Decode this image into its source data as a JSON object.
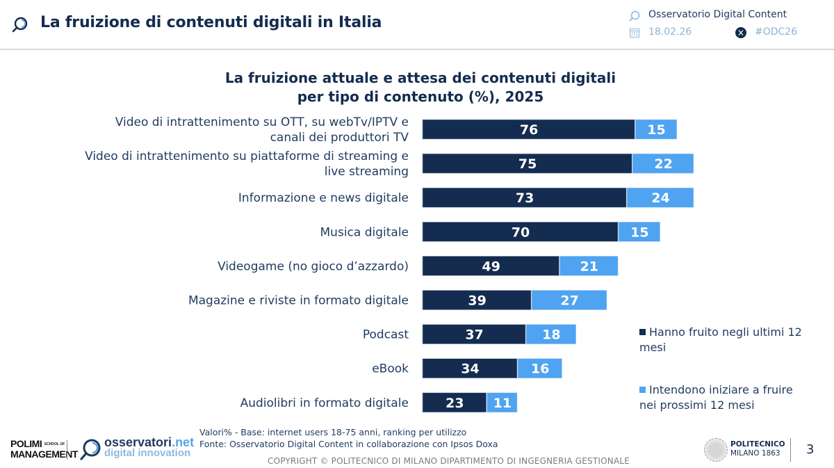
{
  "header": {
    "title": "La fruizione di contenuti digitali in Italia",
    "observatory": "Osservatorio Digital Content",
    "date": "18.02.26",
    "hashtag": "#ODC26",
    "icons": {
      "logo": "magnifier-logo-icon",
      "observatory": "magnifier-logo-icon",
      "date": "calendar-icon",
      "social": "x-social-icon"
    }
  },
  "colors": {
    "primary_dark": "#142c4f",
    "accent_light": "#4fa3f0"
  },
  "chart_data": {
    "type": "bar",
    "orientation": "horizontal",
    "stacked": true,
    "title": "La fruizione attuale e attesa dei contenuti digitali per tipo di contenuto (%), 2025",
    "title_lines": [
      "La fruizione attuale e attesa dei contenuti digitali",
      "per tipo di contenuto (%), 2025"
    ],
    "xlabel": "",
    "ylabel": "",
    "xlim": [
      0,
      100
    ],
    "grid": false,
    "legend_position": "bottom-right",
    "categories": [
      [
        "Video di intrattenimento su OTT, su webTv/IPTV e",
        "canali dei produttori TV"
      ],
      [
        "Video di intrattenimento su piattaforme di streaming e",
        "live streaming"
      ],
      [
        "Informazione e news digitale"
      ],
      [
        "Musica digitale"
      ],
      [
        "Videogame (no gioco d’azzardo)"
      ],
      [
        "Magazine e riviste in formato digitale"
      ],
      [
        "Podcast"
      ],
      [
        "eBook"
      ],
      [
        "Audiolibri in formato digitale"
      ]
    ],
    "series": [
      {
        "name": "Hanno fruito negli ultimi 12 mesi",
        "color": "#142c4f",
        "values": [
          76,
          75,
          73,
          70,
          49,
          39,
          37,
          34,
          23
        ]
      },
      {
        "name": "Intendono iniziare a fruire nei prossimi 12 mesi",
        "color": "#4fa3f0",
        "values": [
          15,
          22,
          24,
          15,
          21,
          27,
          18,
          16,
          11
        ]
      }
    ]
  },
  "legend": {
    "items": [
      {
        "lines": [
          "Hanno fruito negli ultimi 12",
          "mesi"
        ]
      },
      {
        "lines": [
          "Intendono iniziare a fruire",
          "nei prossimi 12 mesi"
        ]
      }
    ]
  },
  "footer": {
    "note_base": "Valori% - Base: internet users 18-75 anni, ranking per utilizzo",
    "note_source": "Fonte: Osservatorio Digital Content in collaborazione con Ipsos Doxa",
    "copyright": "COPYRIGHT © POLITECNICO DI MILANO DIPARTIMENTO DI INGEGNERIA GESTIONALE",
    "polimi_line1": "POLIMI",
    "polimi_school": "SCHOOL OF",
    "polimi_line2": "MANAGEMENT",
    "osservatori_main": "osservatori",
    "osservatori_net": ".net",
    "osservatori_sub": "digital innovation",
    "politecnico_line1": "POLITECNICO",
    "politecnico_line2": "MILANO 1863",
    "page_number": "3"
  }
}
